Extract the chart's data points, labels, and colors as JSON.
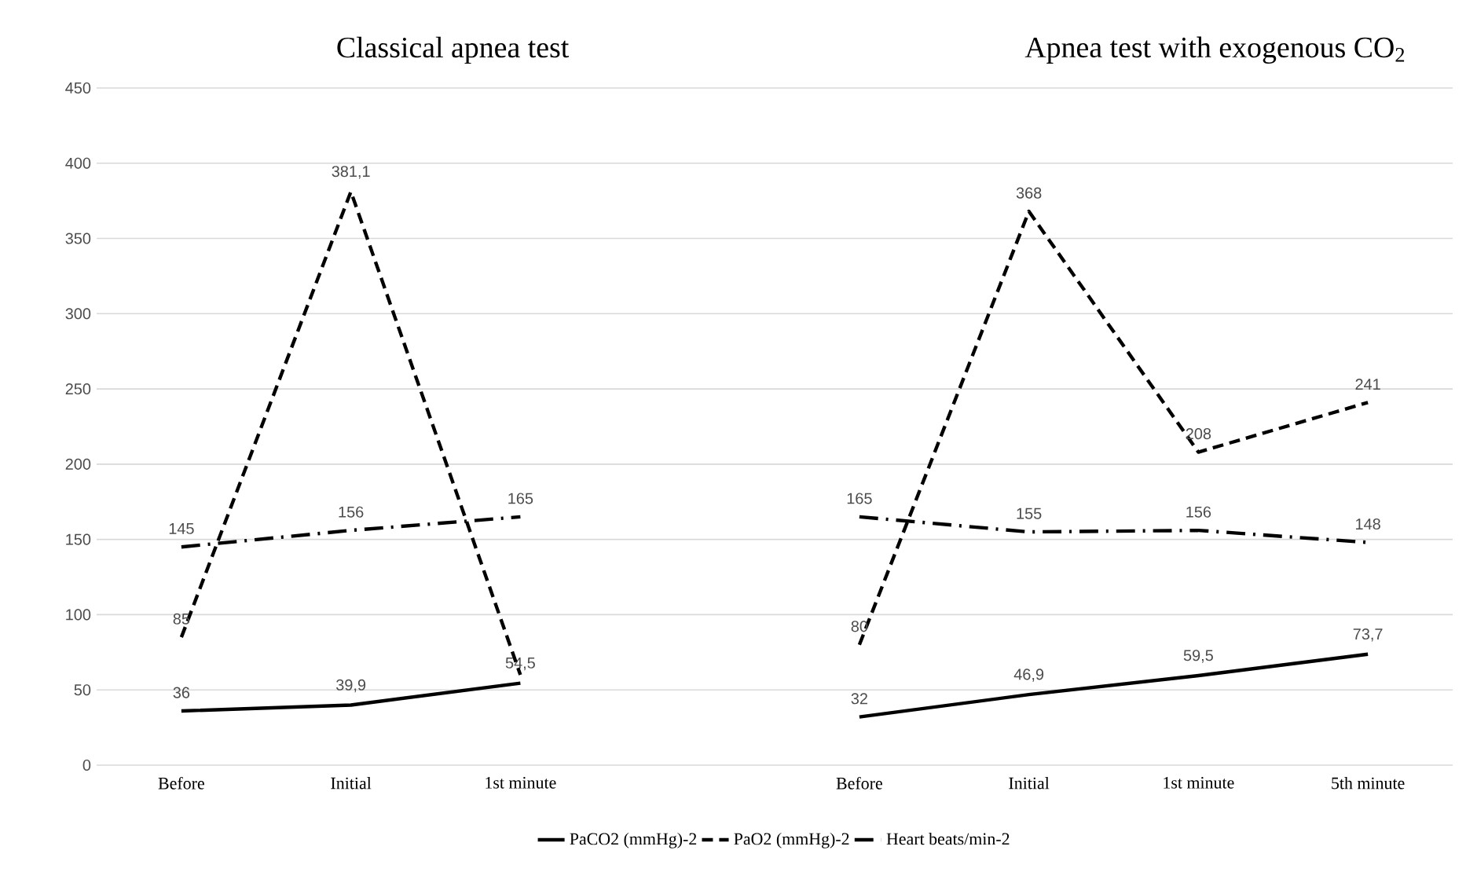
{
  "chart_data": {
    "type": "line",
    "annotations": [
      "Classical apnea test",
      "Apnea test with exogenous CO$_{2}$"
    ],
    "categories": [
      "Before",
      "Initial",
      "1st minute",
      null,
      "Before",
      "Initial",
      "1st minute",
      "5th minute"
    ],
    "series": [
      {
        "name": "PaCO2 (mmHg)-2",
        "color": "#000000",
        "line_style": "solid",
        "values": [
          36,
          39.9,
          54.5,
          null,
          32,
          46.9,
          59.5,
          73.7
        ],
        "value_labels": [
          "36",
          "39,9",
          "54,5",
          null,
          "32",
          "46,9",
          "59,5",
          "73,7"
        ]
      },
      {
        "name": "PaO2 (mmHg)-2",
        "color": "#000000",
        "line_style": "dashed",
        "values": [
          85,
          381.1,
          60,
          null,
          80,
          368,
          208,
          241
        ],
        "value_labels": [
          "85",
          "381,1",
          null,
          null,
          "80",
          "368",
          "208",
          "241"
        ]
      },
      {
        "name": "Heart beats/min-2",
        "color": "#000000",
        "line_style": "dashdot",
        "values": [
          145,
          156,
          165,
          null,
          165,
          155,
          156,
          148
        ],
        "value_labels": [
          "145",
          "156",
          "165",
          null,
          "165",
          "155",
          "156",
          "148"
        ]
      }
    ],
    "ylim": [
      0,
      450
    ],
    "yticks": [
      0,
      50,
      100,
      150,
      200,
      250,
      300,
      350,
      400,
      450
    ],
    "grid": "y",
    "legend": "bottom"
  }
}
